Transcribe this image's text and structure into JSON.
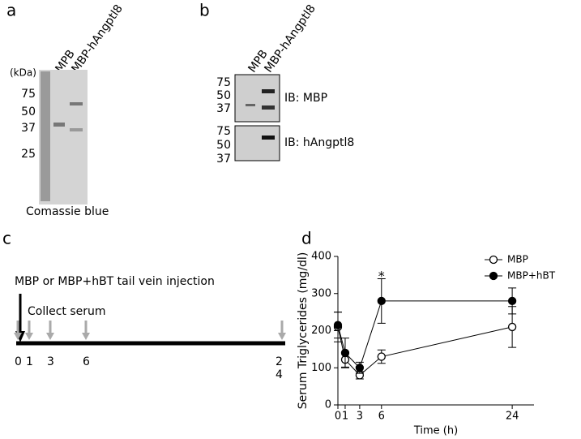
{
  "panel_a": {
    "label": "a",
    "lanes": [
      "MPB",
      "MBP-hAngptl8"
    ],
    "unit": "(kDa)",
    "markers": [
      "75",
      "50",
      "37",
      "25"
    ],
    "caption": "Comassie blue"
  },
  "panel_b": {
    "label": "b",
    "lanes": [
      "MPB",
      "MBP-hAngptl8"
    ],
    "blots": [
      {
        "markers": [
          "75",
          "50",
          "37"
        ],
        "caption": "IB: MBP"
      },
      {
        "markers": [
          "75",
          "50",
          "37"
        ],
        "caption": "IB: hAngptl8"
      }
    ]
  },
  "panel_c": {
    "label": "c",
    "injection": "MBP or MBP+hBT tail vein injection",
    "collect": "Collect serum",
    "timepoints": [
      "0",
      "1",
      "3",
      "6",
      "24"
    ]
  },
  "panel_d": {
    "label": "d"
  },
  "chart_data": {
    "type": "line",
    "xlabel": "Time (h)",
    "ylabel": "Serum Triglycerides (mg/dl)",
    "x": [
      0,
      1,
      3,
      6,
      24
    ],
    "xlim": [
      0,
      27
    ],
    "xticks": [
      0,
      1,
      3,
      6,
      24
    ],
    "ylim": [
      0,
      400
    ],
    "yticks": [
      0,
      100,
      200,
      300,
      400
    ],
    "legend": "upper right",
    "annotations": [
      {
        "text": "*",
        "x": 6,
        "y": 345
      }
    ],
    "series": [
      {
        "name": "MBP",
        "color": "#000000",
        "marker": "open",
        "values": [
          210,
          122,
          80,
          130,
          210
        ],
        "errors": [
          40,
          20,
          10,
          18,
          55
        ]
      },
      {
        "name": "MBP+hBT",
        "color": "#000000",
        "marker": "filled",
        "values": [
          215,
          140,
          100,
          280,
          280
        ],
        "errors": [
          35,
          40,
          15,
          60,
          35
        ]
      }
    ]
  }
}
